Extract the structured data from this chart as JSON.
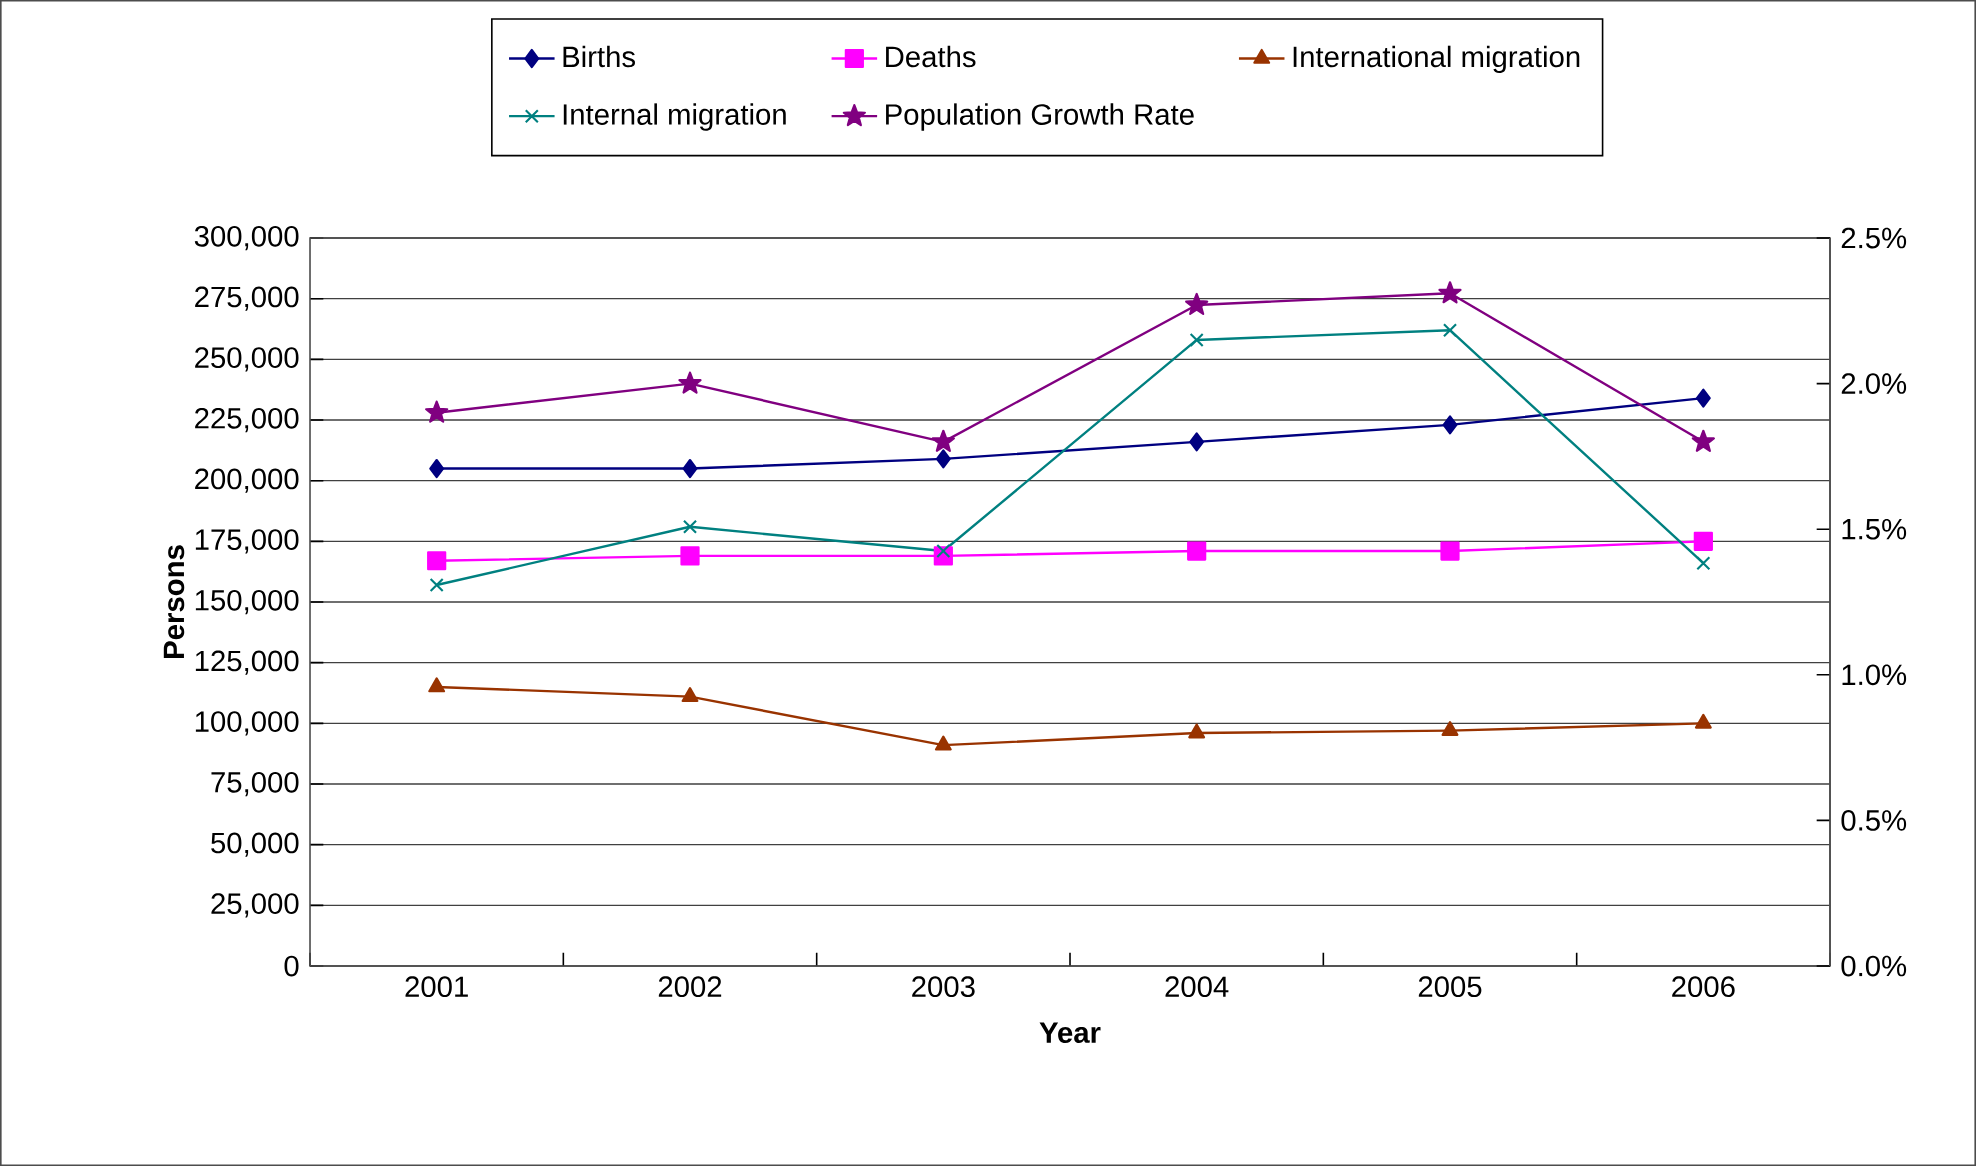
{
  "chart_data": {
    "type": "line",
    "categories": [
      "2001",
      "2002",
      "2003",
      "2004",
      "2005",
      "2006"
    ],
    "xlabel": "Year",
    "ylabel": "Persons",
    "ylim": [
      0,
      300000
    ],
    "yticks": [
      {
        "value": 0,
        "label": "0"
      },
      {
        "value": 25000,
        "label": "25,000"
      },
      {
        "value": 50000,
        "label": "50,000"
      },
      {
        "value": 75000,
        "label": "75,000"
      },
      {
        "value": 100000,
        "label": "100,000"
      },
      {
        "value": 125000,
        "label": "125,000"
      },
      {
        "value": 150000,
        "label": "150,000"
      },
      {
        "value": 175000,
        "label": "175,000"
      },
      {
        "value": 200000,
        "label": "200,000"
      },
      {
        "value": 225000,
        "label": "225,000"
      },
      {
        "value": 250000,
        "label": "250,000"
      },
      {
        "value": 275000,
        "label": "275,000"
      },
      {
        "value": 300000,
        "label": "300,000"
      }
    ],
    "y2lim": [
      0,
      2.5
    ],
    "y2ticks": [
      {
        "value": 0,
        "label": "0.0%"
      },
      {
        "value": 0.5,
        "label": "0.5%"
      },
      {
        "value": 1.0,
        "label": "1.0%"
      },
      {
        "value": 1.5,
        "label": "1.5%"
      },
      {
        "value": 2.0,
        "label": "2.0%"
      },
      {
        "value": 2.5,
        "label": "2.5%"
      }
    ],
    "grid": "y",
    "legend": "top",
    "series": [
      {
        "name": "Births",
        "color": "#000080",
        "marker": "diamond",
        "values": [
          205000,
          205000,
          209000,
          216000,
          223000,
          234000
        ]
      },
      {
        "name": "Deaths",
        "color": "#ff00ff",
        "marker": "square",
        "values": [
          167000,
          169000,
          169000,
          171000,
          171000,
          175000
        ]
      },
      {
        "name": "International migration",
        "color": "#993300",
        "marker": "triangle",
        "values": [
          115000,
          111000,
          91000,
          96000,
          97000,
          100000
        ]
      },
      {
        "name": "Internal migration",
        "color": "#008080",
        "marker": "cross",
        "values": [
          157000,
          181000,
          171000,
          258000,
          262000,
          166000
        ]
      },
      {
        "name": "Population Growth Rate",
        "color": "#800080",
        "marker": "star",
        "axis": "y2",
        "values": [
          1.9,
          2.0,
          1.8,
          2.27,
          2.31,
          1.8
        ]
      }
    ]
  }
}
